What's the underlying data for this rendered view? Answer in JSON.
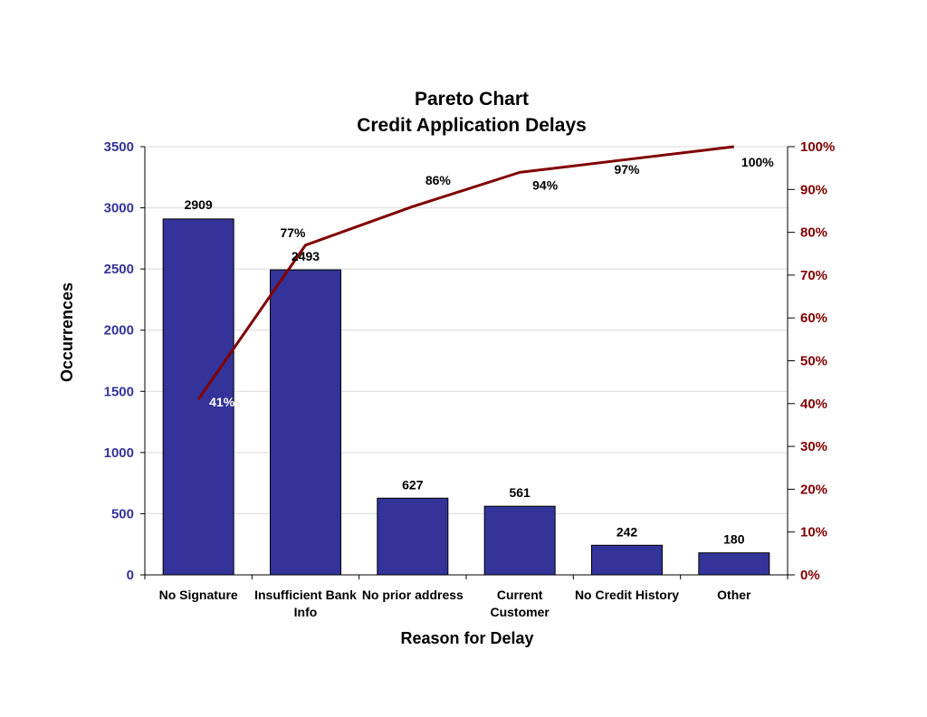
{
  "chart_data": {
    "type": "bar",
    "title": "Pareto Chart",
    "subtitle": "Credit Application Delays",
    "xlabel": "Reason for Delay",
    "ylabel": "Occurrences",
    "categories": [
      [
        "No Signature"
      ],
      [
        "Insufficient Bank",
        "Info"
      ],
      [
        "No prior address"
      ],
      [
        "Current",
        "Customer"
      ],
      [
        "No Credit History"
      ],
      [
        "Other"
      ]
    ],
    "values": [
      2909,
      2493,
      627,
      561,
      242,
      180
    ],
    "value_labels": [
      "2909",
      "2493",
      "627",
      "561",
      "242",
      "180"
    ],
    "cumulative_percent": [
      41,
      77,
      86,
      94,
      97,
      100
    ],
    "cumulative_labels": [
      "41%",
      "77%",
      "86%",
      "94%",
      "97%",
      "100%"
    ],
    "ylim": [
      0,
      3500
    ],
    "yticks": [
      0,
      500,
      1000,
      1500,
      2000,
      2500,
      3000,
      3500
    ],
    "ytick_labels": [
      "0",
      "500",
      "1000",
      "1500",
      "2000",
      "2500",
      "3000",
      "3500"
    ],
    "y2lim": [
      0,
      100
    ],
    "y2ticks": [
      0,
      10,
      20,
      30,
      40,
      50,
      60,
      70,
      80,
      90,
      100
    ],
    "y2tick_labels": [
      "0%",
      "10%",
      "20%",
      "30%",
      "40%",
      "50%",
      "60%",
      "70%",
      "80%",
      "90%",
      "100%"
    ],
    "grid": true,
    "colors": {
      "bar": "#333399",
      "line": "#800000",
      "left_axis": "#333399",
      "right_axis": "#800000",
      "grid": "#d9d9d9"
    }
  }
}
